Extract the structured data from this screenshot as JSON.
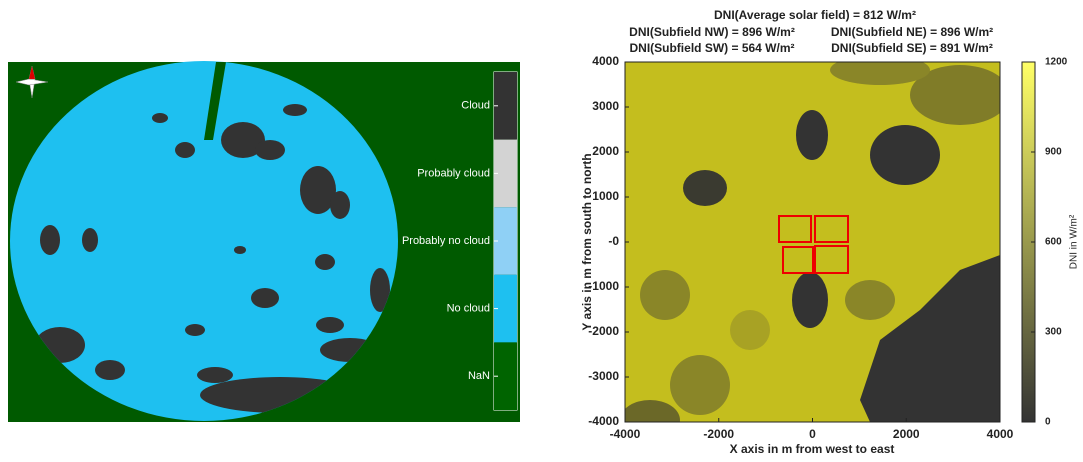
{
  "chart_data": [
    {
      "type": "image",
      "legend": [
        {
          "label": "Cloud",
          "color": "#333333"
        },
        {
          "label": "Probably cloud",
          "color": "#d3d3d3"
        },
        {
          "label": "Probably no cloud",
          "color": "#8fd0f5"
        },
        {
          "label": "No cloud",
          "color": "#1ec0f0"
        },
        {
          "label": "NaN",
          "color": "#006400"
        }
      ]
    },
    {
      "type": "heatmap",
      "title": "DNI(Average solar field) = 812 W/m²",
      "subtitles": [
        "DNI(Subfield NW) = 896 W/m²",
        "DNI(Subfield NE) = 896 W/m²",
        "DNI(Subfield SW) = 564 W/m²",
        "DNI(Subfield SE) = 891 W/m²"
      ],
      "xlabel": "X axis in m from west to east",
      "ylabel": "Y axis in m from south to north",
      "xlim": [
        -4000,
        4000
      ],
      "ylim": [
        -4000,
        4000
      ],
      "xticks": [
        -4000,
        -2000,
        0,
        2000,
        4000
      ],
      "yticks": [
        -4000,
        -3000,
        -2000,
        -1000,
        {
          "value": 0,
          "label": "-0"
        },
        1000,
        2000,
        3000,
        4000
      ],
      "colorbar": {
        "label": "DNI in W/m²",
        "lim": [
          0,
          1200
        ],
        "ticks": [
          0,
          300,
          600,
          900,
          1200
        ],
        "colors": [
          "#333333",
          "#ffff66"
        ]
      }
    }
  ]
}
